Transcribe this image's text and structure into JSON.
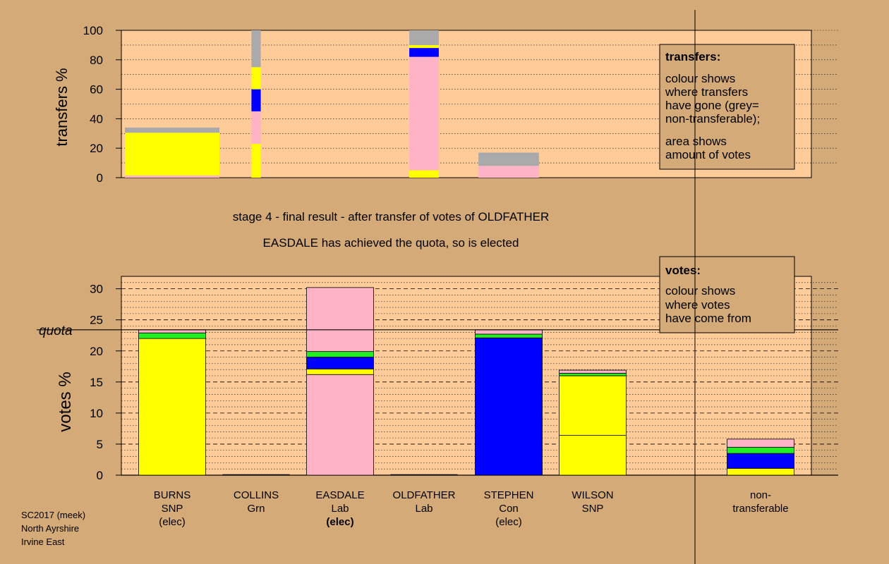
{
  "colors": {
    "background": "#d4aa78",
    "panel": "#ffcc99",
    "pink": "#ffb3c6",
    "yellow": "#ffff00",
    "blue": "#0000ff",
    "green": "#22ee22",
    "grey": "#aaaaaa"
  },
  "stage": {
    "line1": "stage 4 - final result - after transfer of votes of OLDFATHER",
    "line2": "EASDALE has achieved the quota, so is elected"
  },
  "footer": {
    "line1": "SC2017 (meek)",
    "line2": "North Ayrshire",
    "line3": "Irvine East"
  },
  "chart_data": [
    {
      "name": "transfers",
      "type": "bar",
      "stacked": true,
      "ylabel": "transfers %",
      "ylim": [
        0,
        100
      ],
      "yticks": [
        0,
        20,
        40,
        60,
        80,
        100
      ],
      "grid": "dotted",
      "legend": {
        "title": "transfers:",
        "lines1": [
          "colour shows",
          "where transfers",
          "have gone (grey=",
          "non-transferable);"
        ],
        "lines2": [
          "area shows",
          "amount of votes"
        ]
      },
      "bars": [
        {
          "candidate": "BURNS",
          "width_share": 1.0,
          "segments": [
            {
              "color": "pink",
              "value": 1.5
            },
            {
              "color": "yellow",
              "value": 29
            },
            {
              "color": "grey",
              "value": 3.5
            }
          ]
        },
        {
          "candidate": "COLLINS",
          "width_share": 0.12,
          "segments": [
            {
              "color": "yellow",
              "value": 23
            },
            {
              "color": "pink",
              "value": 22
            },
            {
              "color": "blue",
              "value": 15
            },
            {
              "color": "yellow",
              "value": 15
            },
            {
              "color": "grey",
              "value": 25
            }
          ]
        },
        {
          "candidate": "OLDFATHER",
          "width_share": 0.38,
          "segments": [
            {
              "color": "yellow",
              "value": 5
            },
            {
              "color": "pink",
              "value": 77
            },
            {
              "color": "blue",
              "value": 6
            },
            {
              "color": "yellow",
              "value": 2
            },
            {
              "color": "grey",
              "value": 10
            }
          ]
        },
        {
          "candidate": "STEPHEN",
          "width_share": 0.78,
          "segments": [
            {
              "color": "pink",
              "value": 8
            },
            {
              "color": "grey",
              "value": 9
            }
          ]
        }
      ]
    },
    {
      "name": "votes",
      "type": "bar",
      "stacked": true,
      "ylabel": "votes %",
      "ylim": [
        0,
        32
      ],
      "yticks": [
        0,
        5,
        10,
        15,
        20,
        25,
        30
      ],
      "quota": 23.4,
      "quota_label": "quota",
      "legend": {
        "title": "votes:",
        "lines": [
          "colour shows",
          "where votes",
          "have come from"
        ]
      },
      "categories": [
        {
          "lines": [
            "BURNS",
            "SNP",
            "(elec)"
          ],
          "elected": true,
          "bold_status": false
        },
        {
          "lines": [
            "COLLINS",
            "Grn"
          ],
          "elected": false
        },
        {
          "lines": [
            "EASDALE",
            "Lab",
            "(elec)"
          ],
          "elected": true,
          "bold_status": true
        },
        {
          "lines": [
            "OLDFATHER",
            "Lab"
          ],
          "elected": false
        },
        {
          "lines": [
            "STEPHEN",
            "Con",
            "(elec)"
          ],
          "elected": true,
          "bold_status": false
        },
        {
          "lines": [
            "WILSON",
            "SNP"
          ],
          "elected": false
        },
        {
          "lines": [
            "non-",
            "transferable"
          ],
          "elected": false
        }
      ],
      "series_stacks": [
        [
          {
            "color": "yellow",
            "value": 22.0
          },
          {
            "color": "green",
            "value": 0.9
          },
          {
            "color": "pink",
            "value": 0.5
          }
        ],
        [],
        [
          {
            "color": "pink",
            "value": 16.2
          },
          {
            "color": "yellow",
            "value": 0.9
          },
          {
            "color": "blue",
            "value": 1.9
          },
          {
            "color": "green",
            "value": 0.9
          },
          {
            "color": "pink",
            "value": 10.3
          }
        ],
        [],
        [
          {
            "color": "blue",
            "value": 22.1
          },
          {
            "color": "green",
            "value": 0.6
          },
          {
            "color": "pink",
            "value": 0.7
          }
        ],
        [
          {
            "color": "yellow",
            "value": 6.4
          },
          {
            "color": "yellow",
            "value": 9.6
          },
          {
            "color": "green",
            "value": 0.4
          },
          {
            "color": "pink",
            "value": 0.5
          }
        ],
        [
          {
            "color": "yellow",
            "value": 1.1
          },
          {
            "color": "blue",
            "value": 2.4
          },
          {
            "color": "green",
            "value": 1.0
          },
          {
            "color": "pink",
            "value": 1.3
          }
        ]
      ]
    }
  ]
}
